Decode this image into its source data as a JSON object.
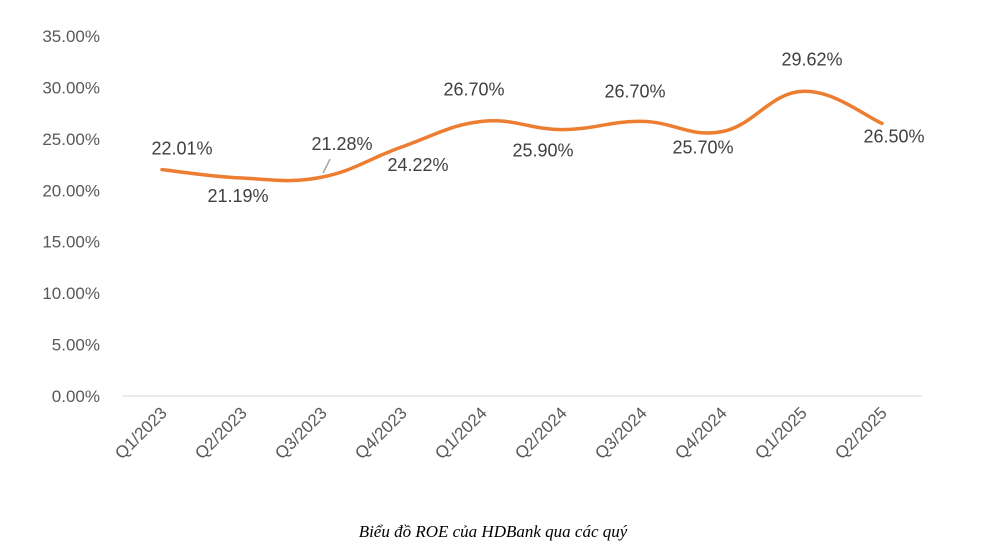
{
  "chart_data": {
    "type": "line",
    "title": "",
    "xlabel": "",
    "ylabel": "",
    "categories": [
      "Q1/2023",
      "Q2/2023",
      "Q3/2023",
      "Q4/2023",
      "Q1/2024",
      "Q2/2024",
      "Q3/2024",
      "Q4/2024",
      "Q1/2025",
      "Q2/2025"
    ],
    "series": [
      {
        "values": [
          22.01,
          21.19,
          21.28,
          24.22,
          26.7,
          25.9,
          26.7,
          25.7,
          29.62,
          26.5
        ]
      }
    ],
    "data_labels": [
      "22.01%",
      "21.19%",
      "21.28%",
      "24.22%",
      "26.70%",
      "25.90%",
      "26.70%",
      "25.70%",
      "29.62%",
      "26.50%"
    ],
    "ylim": [
      0,
      35
    ],
    "yticks": [
      "0.00%",
      "5.00%",
      "10.00%",
      "15.00%",
      "20.00%",
      "25.00%",
      "30.00%",
      "35.00%"
    ],
    "grid": false,
    "legend": "none",
    "line_color": "#ED7D31",
    "label_color": "#404040"
  },
  "caption": "Biểu đồ ROE của HDBank qua các quý"
}
